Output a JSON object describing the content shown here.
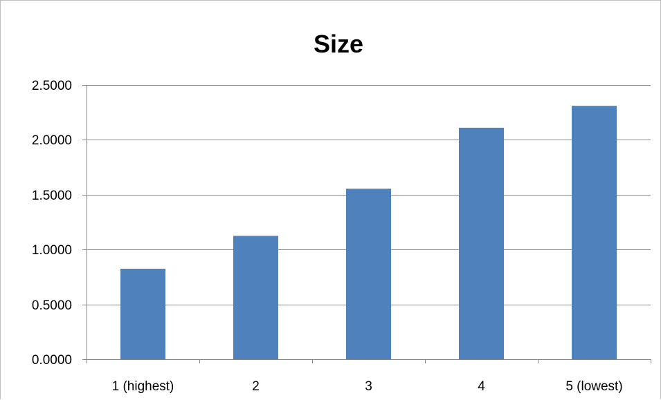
{
  "chart_data": {
    "type": "bar",
    "title": "Size",
    "categories": [
      "1 (highest)",
      "2",
      "3",
      "4",
      "5 (lowest)"
    ],
    "values": [
      0.825,
      1.125,
      1.555,
      2.11,
      2.31
    ],
    "ylim": [
      0,
      2.5
    ],
    "yticks": [
      "0.0000",
      "0.5000",
      "1.0000",
      "1.5000",
      "2.0000",
      "2.5000"
    ],
    "ytick_values": [
      0,
      0.5,
      1.0,
      1.5,
      2.0,
      2.5
    ],
    "xlabel": "",
    "ylabel": "",
    "grid": true,
    "legend": "none",
    "bar_color": "#4f81bd",
    "grid_color": "#868686"
  }
}
